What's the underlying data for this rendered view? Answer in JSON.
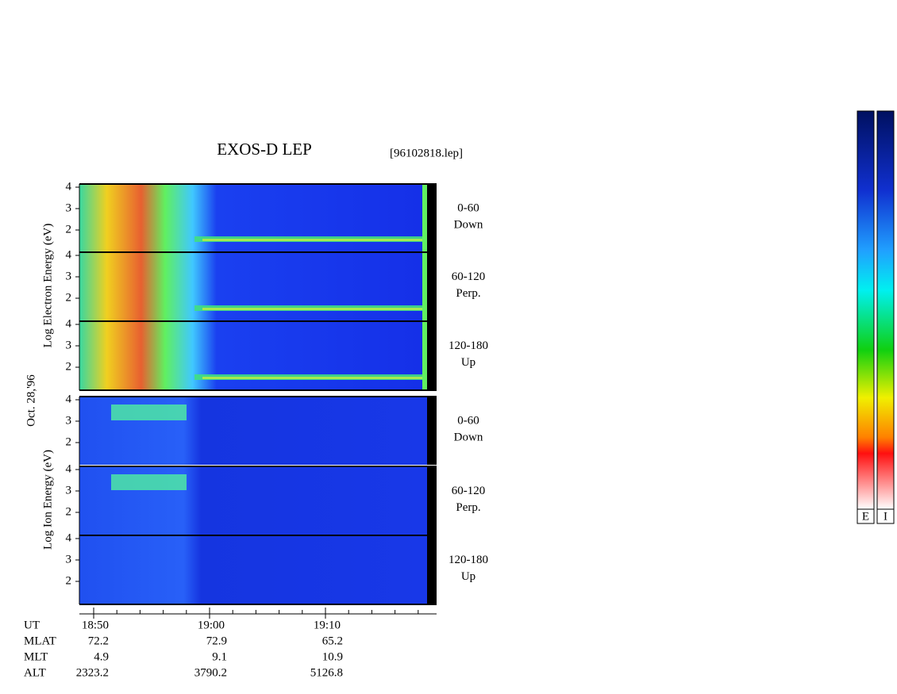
{
  "title": "EXOS-D LEP",
  "file": "[96102818.lep]",
  "date": "Oct. 28,'96",
  "energy_ticks": [
    "4",
    "3",
    "2"
  ],
  "groups": [
    {
      "ylabel": "Log Electron Energy (eV)",
      "panels": [
        {
          "range": "0-60",
          "direction": "Down"
        },
        {
          "range": "60-120",
          "direction": "Perp."
        },
        {
          "range": "120-180",
          "direction": "Up"
        }
      ]
    },
    {
      "ylabel": "Log Ion Energy (eV)",
      "panels": [
        {
          "range": "0-60",
          "direction": "Down"
        },
        {
          "range": "60-120",
          "direction": "Perp."
        },
        {
          "range": "120-180",
          "direction": "Up"
        }
      ]
    }
  ],
  "orbit": {
    "ut_label": "UT",
    "ut": [
      "18:50",
      "19:00",
      "19:10"
    ],
    "rows": [
      {
        "label": "MLAT",
        "values": [
          "72.2",
          "72.9",
          "65.2"
        ]
      },
      {
        "label": "MLT",
        "values": [
          "4.9",
          "9.1",
          "10.9"
        ]
      },
      {
        "label": "ALT",
        "values": [
          "2323.2",
          "3790.2",
          "5126.8"
        ]
      }
    ]
  },
  "colorbars": [
    "E",
    "I"
  ]
}
